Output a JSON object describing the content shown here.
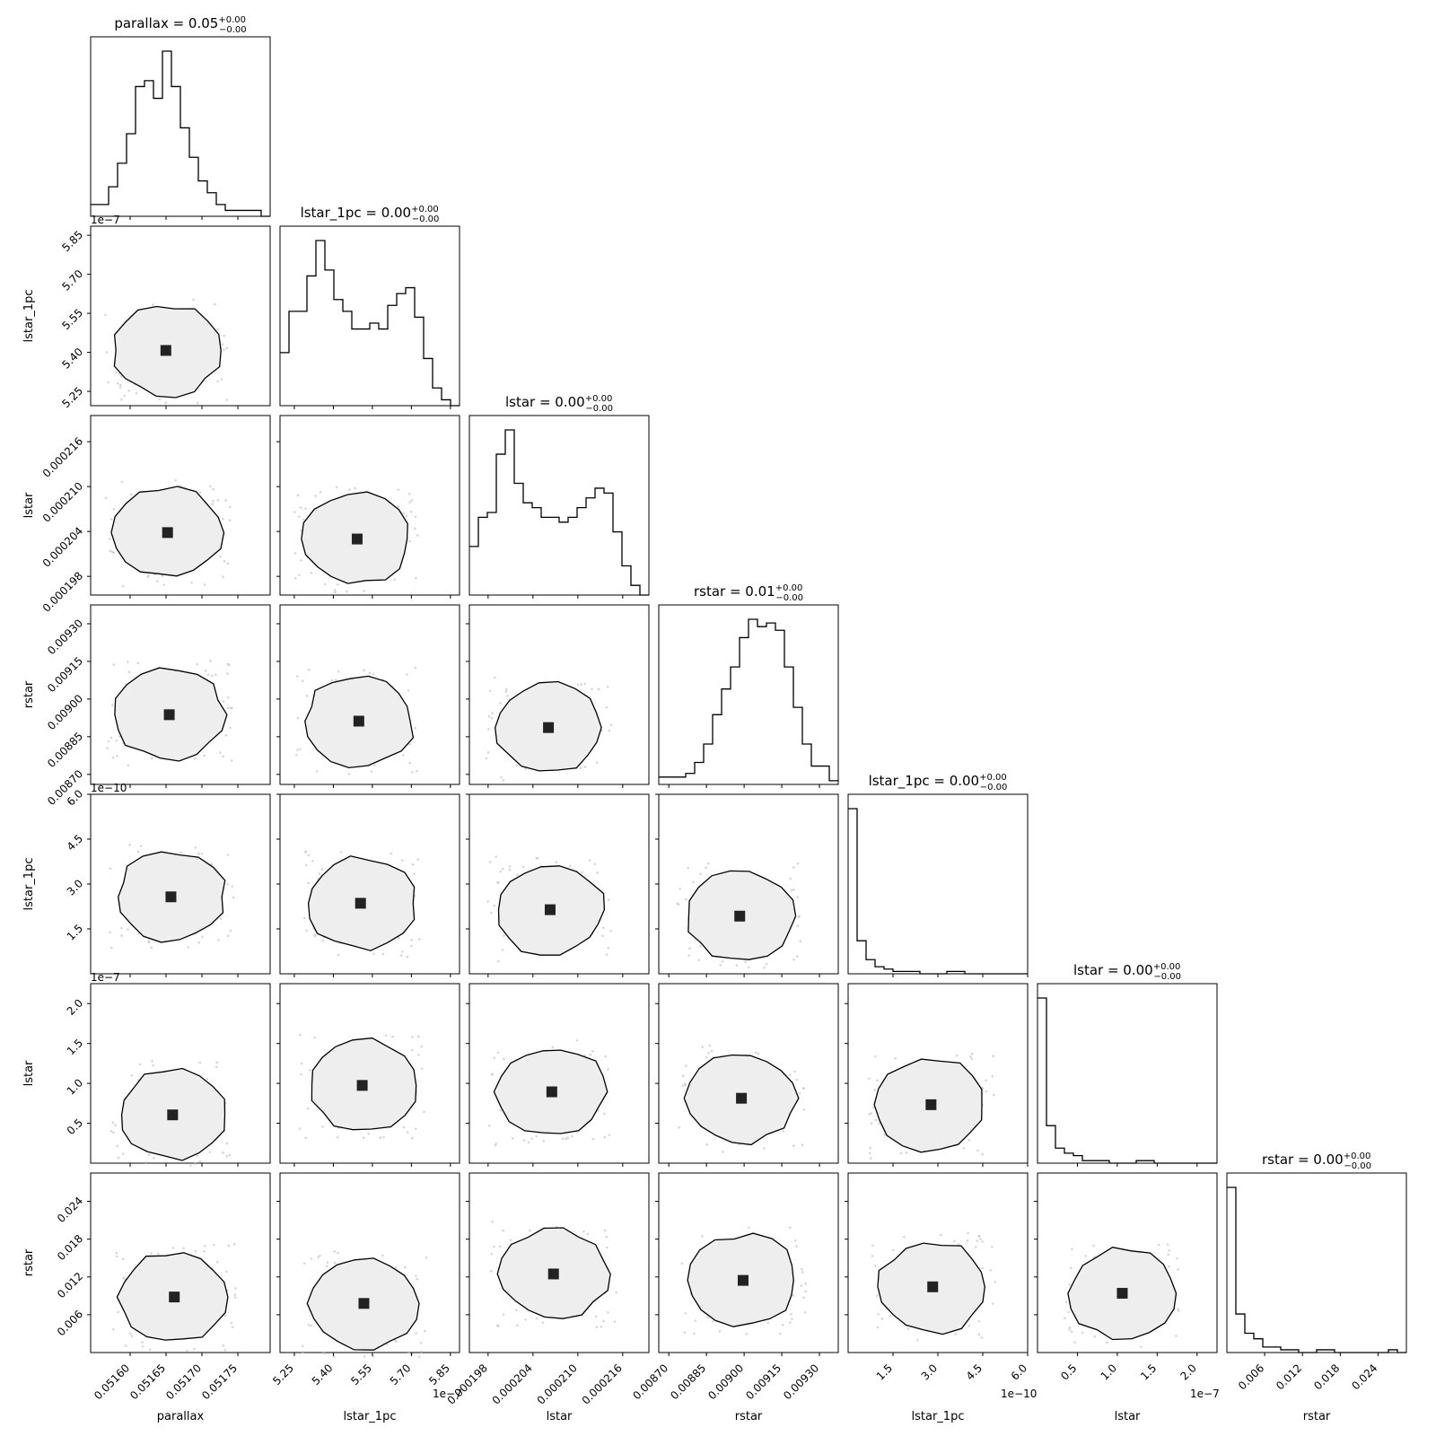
{
  "chart_data": {
    "type": "corner",
    "grid": false,
    "panels_per_side": 7,
    "parameters": [
      {
        "name": "parallax",
        "xlabel": "parallax",
        "ylabel": "",
        "title_name": "parallax",
        "title_value": "0.05",
        "title_plus": "+0.00",
        "title_minus": "−0.00",
        "range": [
          0.051545,
          0.051795
        ],
        "ticks": [
          0.0516,
          0.05165,
          0.0517,
          0.05175
        ],
        "tick_labels": [
          "0.05160",
          "0.05165",
          "0.05170",
          "0.05175"
        ],
        "offset": ""
      },
      {
        "name": "lstar_1pc",
        "xlabel": "lstar_1pc",
        "ylabel": "lstar_1pc",
        "title_name": "lstar_1pc",
        "title_value": "0.00",
        "title_plus": "+0.00",
        "title_minus": "−0.00",
        "range": [
          5.195,
          5.885
        ],
        "ticks": [
          5.25,
          5.4,
          5.55,
          5.7,
          5.85
        ],
        "tick_labels": [
          "5.25",
          "5.40",
          "5.55",
          "5.70",
          "5.85"
        ],
        "offset": "1e−7"
      },
      {
        "name": "lstar",
        "xlabel": "lstar",
        "ylabel": "lstar",
        "title_name": "lstar",
        "title_value": "0.00",
        "title_plus": "+0.00",
        "title_minus": "−0.00",
        "range": [
          0.0001955,
          0.0002195
        ],
        "ticks": [
          0.000198,
          0.000204,
          0.00021,
          0.000216
        ],
        "tick_labels": [
          "0.000198",
          "0.000204",
          "0.000210",
          "0.000216"
        ],
        "offset": ""
      },
      {
        "name": "rstar",
        "xlabel": "rstar",
        "ylabel": "rstar",
        "title_name": "rstar",
        "title_value": "0.01",
        "title_plus": "+0.00",
        "title_minus": "−0.00",
        "range": [
          0.00866,
          0.009375
        ],
        "ticks": [
          0.0087,
          0.00885,
          0.009,
          0.00915,
          0.0093
        ],
        "tick_labels": [
          "0.00870",
          "0.00885",
          "0.00900",
          "0.00915",
          "0.00930"
        ],
        "offset": ""
      },
      {
        "name": "lstar_1pc",
        "xlabel": "lstar_1pc",
        "ylabel": "lstar_1pc",
        "title_name": "lstar_1pc",
        "title_value": "0.00",
        "title_plus": "+0.00",
        "title_minus": "−0.00",
        "range": [
          0,
          6.0
        ],
        "ticks": [
          1.5,
          3.0,
          4.5,
          6.0
        ],
        "tick_labels": [
          "1.5",
          "3.0",
          "4.5",
          "6.0"
        ],
        "offset": "1e−10"
      },
      {
        "name": "lstar",
        "xlabel": "lstar",
        "ylabel": "lstar",
        "title_name": "lstar",
        "title_value": "0.00",
        "title_plus": "+0.00",
        "title_minus": "−0.00",
        "range": [
          0,
          2.25
        ],
        "ticks": [
          0.5,
          1.0,
          1.5,
          2.0
        ],
        "tick_labels": [
          "0.5",
          "1.0",
          "1.5",
          "2.0"
        ],
        "offset": "1e−7"
      },
      {
        "name": "rstar",
        "xlabel": "rstar",
        "ylabel": "rstar",
        "title_name": "rstar",
        "title_value": "0.00",
        "title_plus": "+0.00",
        "title_minus": "−0.00",
        "range": [
          0.0,
          0.0285
        ],
        "ticks": [
          0.006,
          0.012,
          0.018,
          0.024
        ],
        "tick_labels": [
          "0.006",
          "0.012",
          "0.018",
          "0.024"
        ],
        "offset": ""
      }
    ],
    "histograms": [
      {
        "x_start": 0.051545,
        "bin_width": 1.25e-05,
        "counts": [
          2,
          2,
          5,
          9,
          14,
          22,
          23,
          20,
          28,
          22,
          15,
          10,
          6,
          4,
          2,
          1,
          1,
          1,
          1,
          0
        ]
      },
      {
        "x_start": 5.195,
        "bin_width": 0.0345,
        "counts": [
          9,
          16,
          16,
          22,
          28,
          23,
          18,
          16,
          13,
          13,
          14,
          13,
          17,
          19,
          20,
          15,
          8,
          3,
          1,
          0
        ]
      },
      {
        "x_start": 0.0001955,
        "bin_width": 1.2e-06,
        "counts": [
          10,
          16,
          17,
          29,
          34,
          23,
          19,
          18,
          16,
          16,
          15,
          16,
          18,
          20,
          22,
          21,
          13,
          6,
          2,
          0
        ]
      },
      {
        "x_start": 0.00866,
        "bin_width": 3.575e-05,
        "counts": [
          2,
          2,
          2,
          3,
          6,
          11,
          19,
          26,
          32,
          40,
          45,
          43,
          44,
          42,
          32,
          21,
          11,
          5,
          5,
          1
        ]
      },
      {
        "x_start": 0.0,
        "bin_width": 0.3,
        "counts": [
          70,
          14,
          6,
          3,
          2,
          1,
          1,
          1,
          0,
          0,
          0,
          1,
          1,
          0,
          0,
          0,
          0,
          0,
          0,
          0
        ]
      },
      {
        "x_start": 0.0,
        "bin_width": 0.1125,
        "counts": [
          66,
          15,
          6,
          4,
          3,
          1,
          1,
          1,
          0,
          0,
          0,
          1,
          1,
          0,
          0,
          0,
          0,
          0,
          0,
          0
        ]
      },
      {
        "x_start": 0.0,
        "bin_width": 0.001425,
        "counts": [
          60,
          14,
          7,
          5,
          2,
          2,
          1,
          1,
          0,
          0,
          1,
          1,
          0,
          0,
          0,
          0,
          0,
          0,
          1,
          0
        ]
      }
    ]
  }
}
